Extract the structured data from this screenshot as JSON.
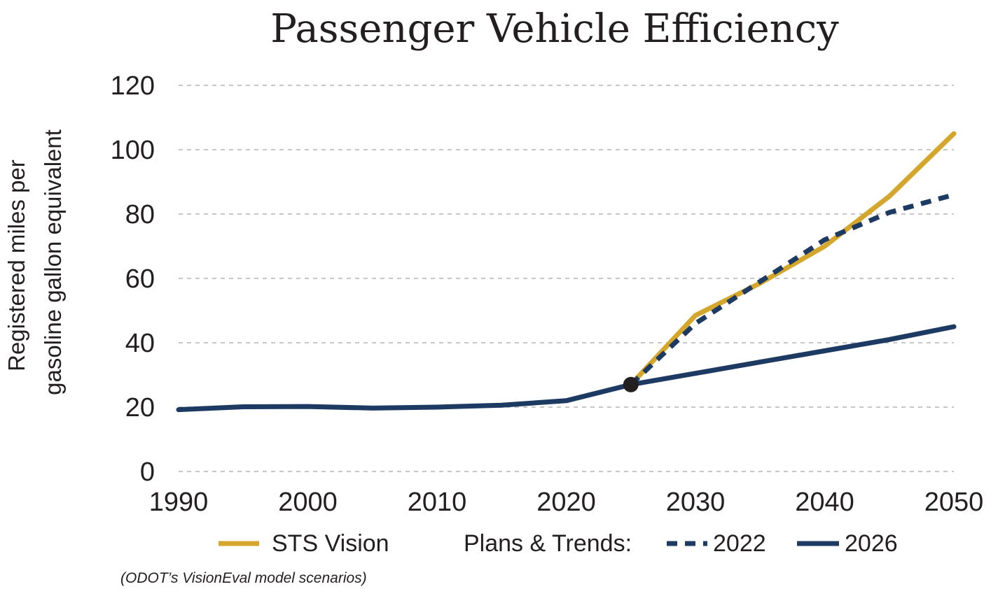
{
  "chart_data": {
    "type": "line",
    "title": "Passenger Vehicle Efficiency",
    "ylabel": [
      "Registered miles per",
      "gasoline gallon equivalent"
    ],
    "xlabel": "",
    "xlim": [
      1990,
      2050
    ],
    "ylim": [
      0,
      120
    ],
    "x_ticks": [
      1990,
      2000,
      2010,
      2020,
      2030,
      2040,
      2050
    ],
    "y_ticks": [
      0,
      20,
      40,
      60,
      80,
      100,
      120
    ],
    "grid": true,
    "series": [
      {
        "name": "STS Vision",
        "color": "#d4a72c",
        "style": "solid",
        "x": [
          2025,
          2030,
          2035,
          2040,
          2045,
          2050
        ],
        "y": [
          27,
          48.5,
          58.5,
          70,
          85.5,
          105
        ]
      },
      {
        "name": "2022",
        "color": "#1d3a63",
        "style": "dashed",
        "x": [
          2025,
          2030,
          2035,
          2040,
          2045,
          2050
        ],
        "y": [
          27,
          46,
          59,
          72,
          80.5,
          86
        ]
      },
      {
        "name": "2026",
        "color": "#1d3a63",
        "style": "solid",
        "x": [
          1990,
          1995,
          2000,
          2005,
          2010,
          2015,
          2020,
          2025,
          2030,
          2035,
          2040,
          2045,
          2050
        ],
        "y": [
          19.2,
          20.1,
          20.2,
          19.7,
          20,
          20.6,
          22,
          27,
          30.5,
          34,
          37.5,
          41,
          45
        ]
      }
    ],
    "marker": {
      "x": 2025,
      "y": 27,
      "color": "#231f20"
    },
    "legend": {
      "items": [
        {
          "label": "STS Vision",
          "series": 0
        },
        {
          "label": "Plans & Trends:",
          "series": null
        },
        {
          "label": "2022",
          "series": 1
        },
        {
          "label": "2026",
          "series": 2
        }
      ],
      "placement": "bottom"
    },
    "footnote": "(ODOT’s VisionEval model scenarios)"
  }
}
